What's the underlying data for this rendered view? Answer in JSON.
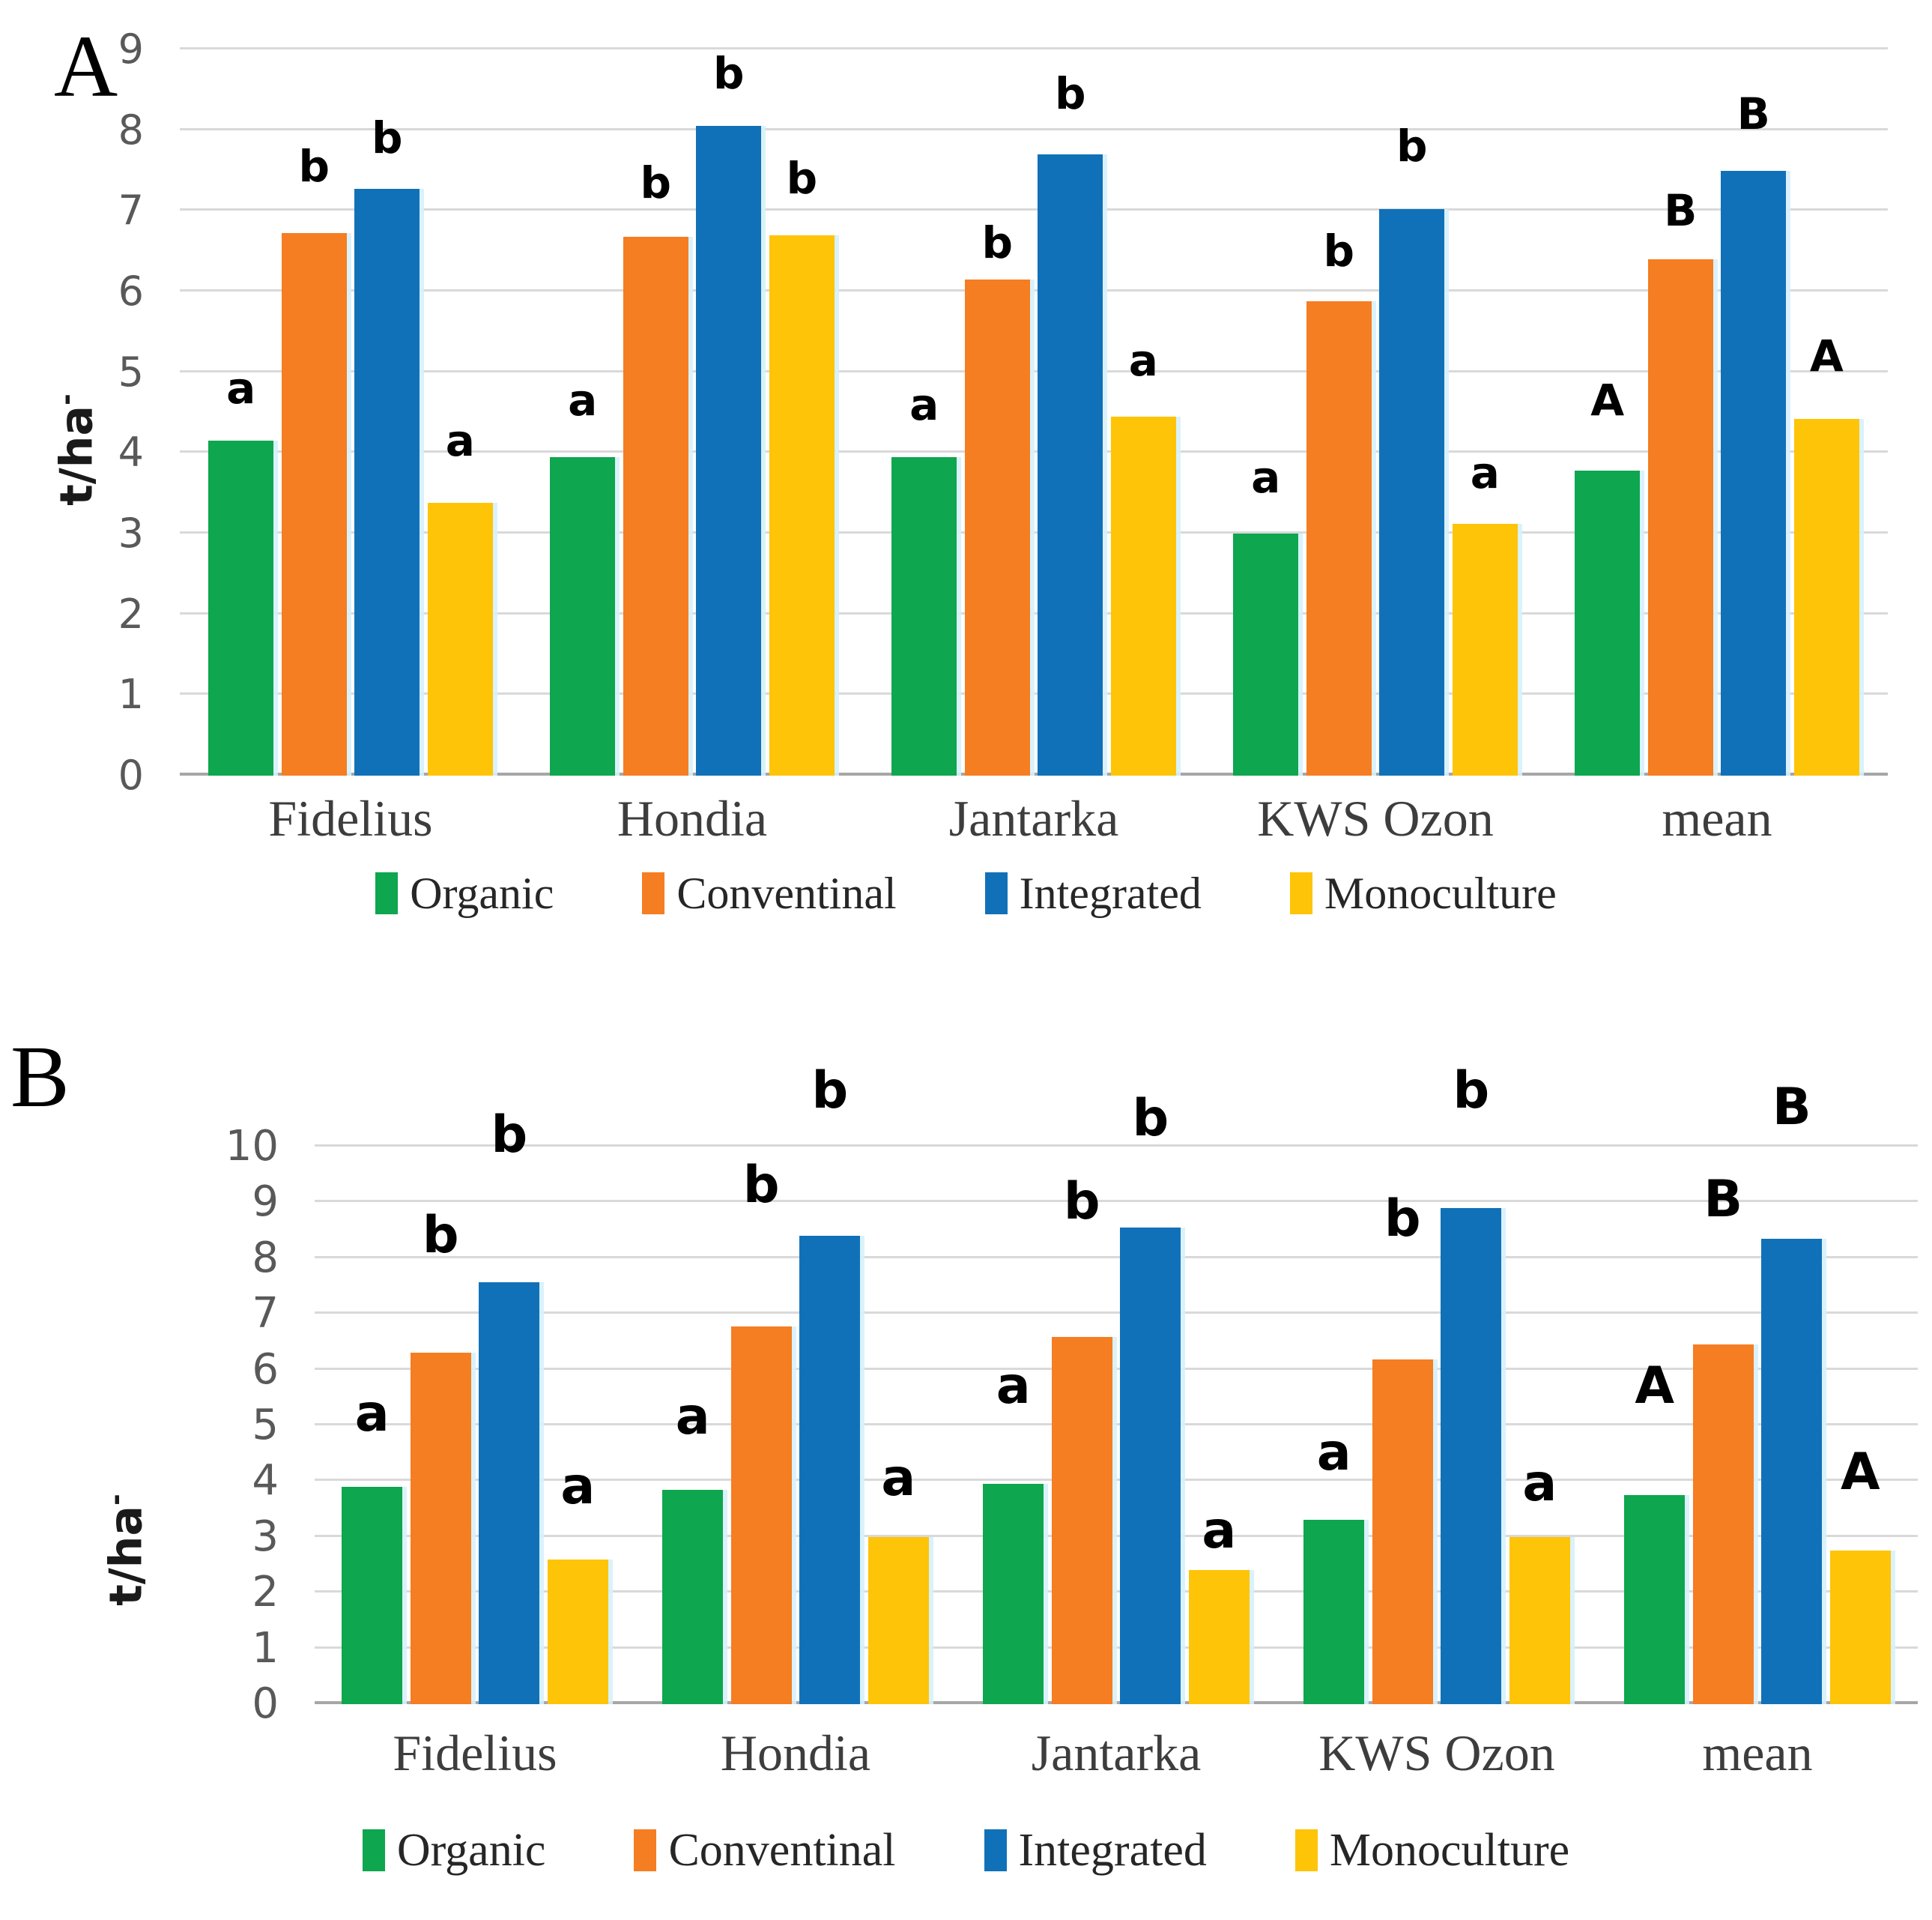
{
  "chart_data": [
    {
      "type": "bar",
      "panel_label": "A",
      "ylabel": "t/ha",
      "ylabel_superscript": "-",
      "ylim": [
        0,
        9
      ],
      "yticks": [
        0,
        1,
        2,
        3,
        4,
        5,
        6,
        7,
        8,
        9
      ],
      "grid": true,
      "legend_position": "bottom",
      "categories": [
        "Fidelius",
        "Hondia",
        "Jantarka",
        "KWS Ozon",
        "mean"
      ],
      "series": [
        {
          "name": "Organic",
          "color": "#0ea64e",
          "values": [
            4.15,
            3.95,
            3.95,
            3.0,
            3.78
          ],
          "sig_letters": [
            "a",
            "a",
            "a",
            "a",
            "A"
          ],
          "letter_y": [
            4.8,
            4.65,
            4.6,
            3.7,
            4.65
          ]
        },
        {
          "name": "Conventinal",
          "color": "#f57d22",
          "values": [
            6.72,
            6.68,
            6.15,
            5.88,
            6.4
          ],
          "sig_letters": [
            "b",
            "b",
            "b",
            "b",
            "B"
          ],
          "letter_y": [
            7.55,
            7.35,
            6.6,
            6.5,
            7.0
          ]
        },
        {
          "name": "Integrated",
          "color": "#1171b8",
          "values": [
            7.27,
            8.05,
            7.7,
            7.02,
            7.5
          ],
          "sig_letters": [
            "b",
            "b",
            "b",
            "b",
            "B"
          ],
          "letter_y": [
            7.9,
            8.7,
            8.45,
            7.8,
            8.2
          ]
        },
        {
          "name": "Monoculture",
          "color": "#fec407",
          "values": [
            3.38,
            6.7,
            4.45,
            3.12,
            4.42
          ],
          "sig_letters": [
            "a",
            "b",
            "a",
            "a",
            "A"
          ],
          "letter_y": [
            4.15,
            7.4,
            5.15,
            3.75,
            5.2
          ]
        }
      ]
    },
    {
      "type": "bar",
      "panel_label": "B",
      "ylabel": "t/ha",
      "ylabel_superscript": "-",
      "ylim": [
        0,
        10
      ],
      "yticks": [
        0,
        1,
        2,
        3,
        4,
        5,
        6,
        7,
        8,
        9,
        10
      ],
      "grid": true,
      "legend_position": "bottom",
      "categories": [
        "Fidelius",
        "Hondia",
        "Jantarka",
        "KWS Ozon",
        "mean"
      ],
      "series": [
        {
          "name": "Organic",
          "color": "#0ea64e",
          "values": [
            3.9,
            3.85,
            3.95,
            3.3,
            3.75
          ],
          "sig_letters": [
            "a",
            "a",
            "a",
            "a",
            "A"
          ],
          "letter_y": [
            5.2,
            5.15,
            5.7,
            4.5,
            5.7
          ]
        },
        {
          "name": "Conventinal",
          "color": "#f57d22",
          "values": [
            6.3,
            6.78,
            6.58,
            6.18,
            6.45
          ],
          "sig_letters": [
            "b",
            "b",
            "b",
            "b",
            "B"
          ],
          "letter_y": [
            8.4,
            9.3,
            9.0,
            8.7,
            9.05
          ]
        },
        {
          "name": "Integrated",
          "color": "#1171b8",
          "values": [
            7.57,
            8.4,
            8.55,
            8.9,
            8.35
          ],
          "sig_letters": [
            "b",
            "b",
            "b",
            "b",
            "B"
          ],
          "letter_y": [
            10.2,
            11.0,
            10.5,
            11.0,
            10.7
          ]
        },
        {
          "name": "Monoculture",
          "color": "#fec407",
          "values": [
            2.6,
            3.0,
            2.4,
            3.0,
            2.75
          ],
          "sig_letters": [
            "a",
            "a",
            "a",
            "a",
            "A"
          ],
          "letter_y": [
            3.9,
            4.05,
            3.1,
            3.95,
            4.15
          ]
        }
      ]
    }
  ]
}
